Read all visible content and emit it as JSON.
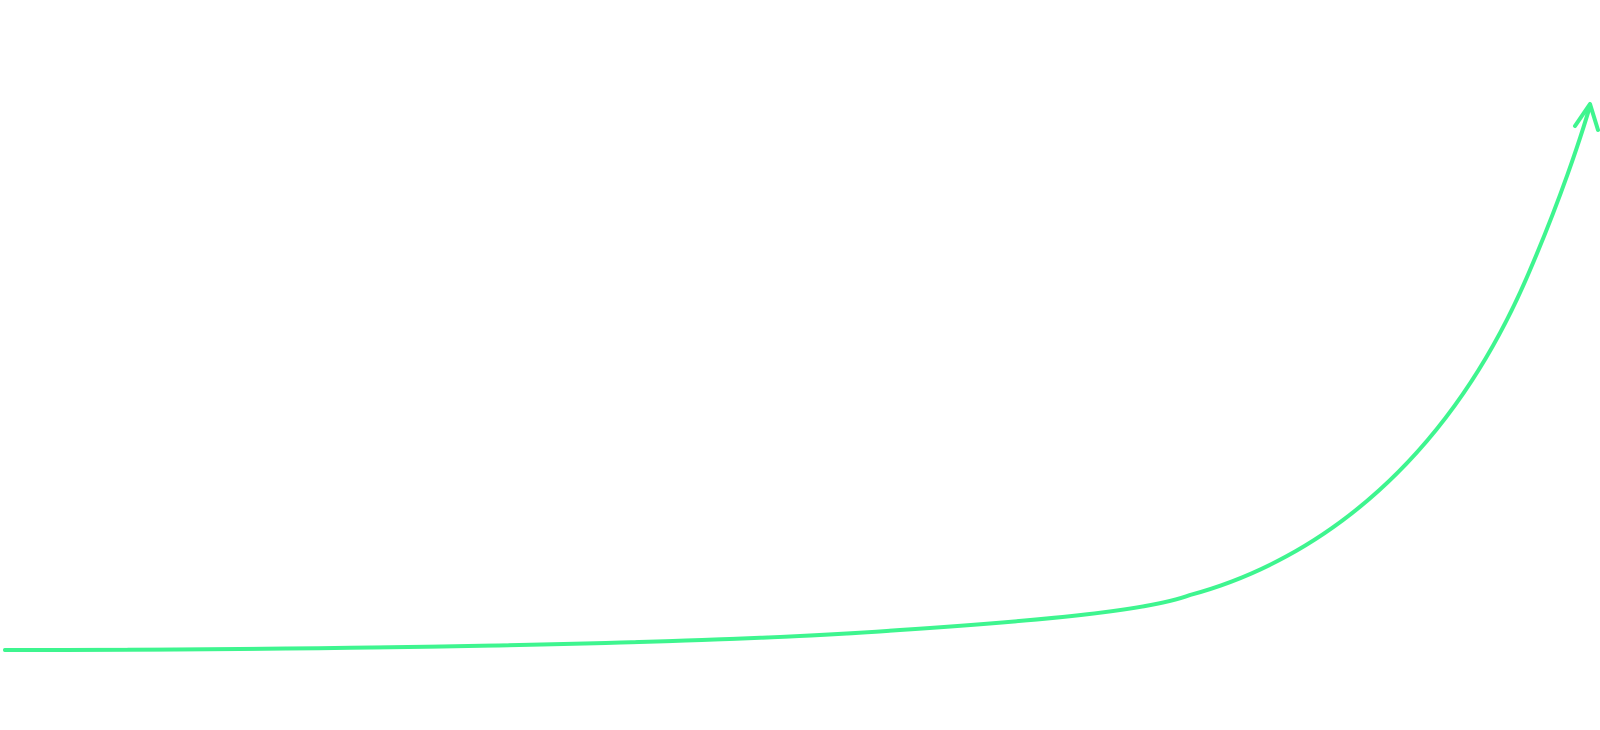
{
  "graphic": {
    "kind": "growth-curve-arrow",
    "stroke_color": "#3ef58f",
    "background_color": "#ffffff",
    "arrowhead_icon": "arrowhead-icon"
  }
}
